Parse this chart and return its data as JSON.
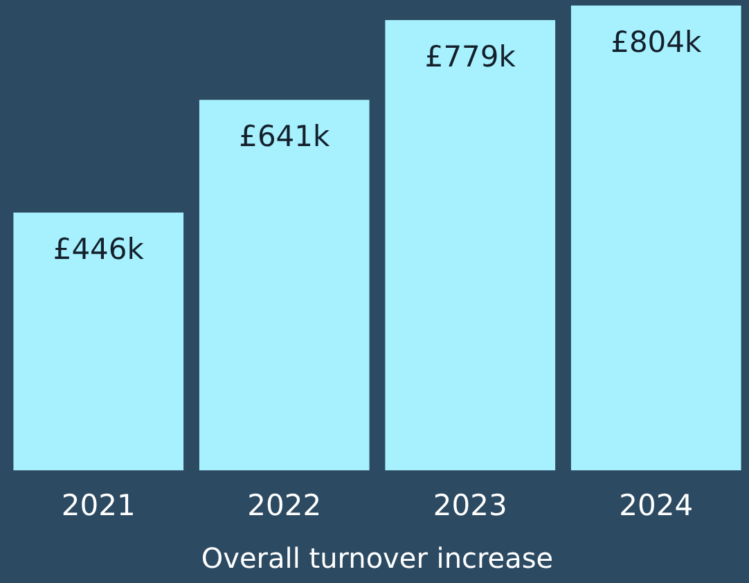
{
  "chart_data": {
    "type": "bar",
    "title": "Overall turnover increase",
    "categories": [
      "2021",
      "2022",
      "2023",
      "2024"
    ],
    "values": [
      446,
      641,
      779,
      804
    ],
    "value_labels": [
      "£446k",
      "£641k",
      "£779k",
      "£804k"
    ],
    "color": "#a6f1fd",
    "grid": false,
    "legend": false,
    "tick_labels": "x"
  }
}
